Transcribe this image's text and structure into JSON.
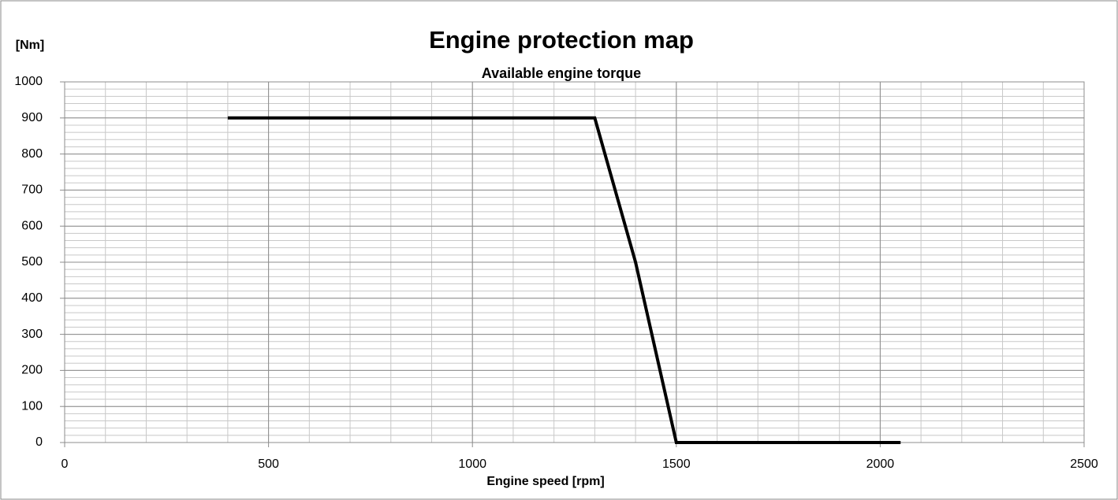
{
  "chart_data": {
    "type": "line",
    "title": "Engine protection map",
    "subtitle": "Available engine torque",
    "y_label": "[Nm]",
    "x_label": "Engine speed [rpm]",
    "x": [
      400,
      1300,
      1400,
      1500,
      2050
    ],
    "series": [
      {
        "name": "Available engine torque",
        "color": "#000000",
        "values": [
          900,
          900,
          500,
          0,
          0
        ]
      }
    ],
    "xlim": [
      0,
      2500
    ],
    "xticks": [
      0,
      500,
      1000,
      1500,
      2000,
      2500
    ],
    "ylim": [
      0,
      1000
    ],
    "yticks": [
      0,
      100,
      200,
      300,
      400,
      500,
      600,
      700,
      800,
      900,
      1000
    ],
    "grid": true,
    "x_minor_grid": 100,
    "y_minor_grid": 20
  }
}
